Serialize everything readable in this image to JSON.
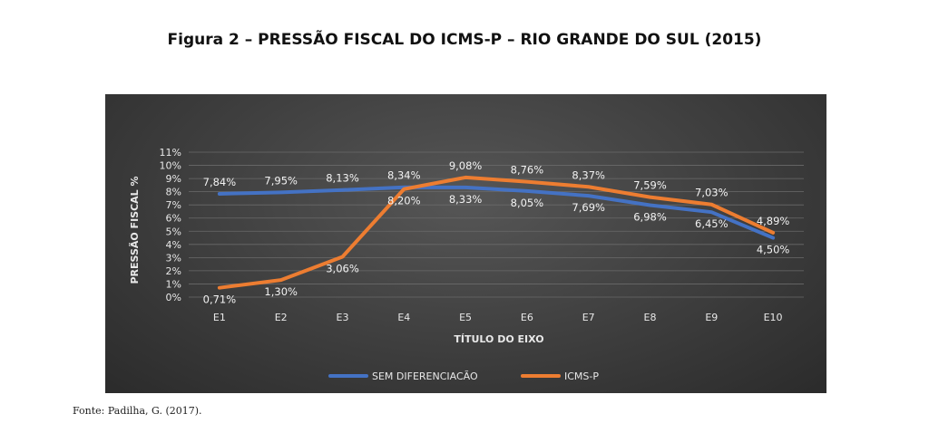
{
  "figure": {
    "title": "Figura 2 – PRESSÃO FISCAL DO ICMS-P – RIO GRANDE DO SUL (2015)",
    "source": "Fonte: Padilha, G. (2017)."
  },
  "chart_data": {
    "type": "line",
    "title": "",
    "xlabel": "TÍTULO DO EIXO",
    "ylabel": "PRESSÃO FISCAL %",
    "categories": [
      "E1",
      "E2",
      "E3",
      "E4",
      "E5",
      "E6",
      "E7",
      "E8",
      "E9",
      "E10"
    ],
    "y_ticks": [
      "0%",
      "1%",
      "2%",
      "3%",
      "4%",
      "5%",
      "6%",
      "7%",
      "8%",
      "9%",
      "10%",
      "11%"
    ],
    "ylim": [
      0,
      11
    ],
    "grid": true,
    "legend_position": "bottom",
    "series": [
      {
        "name": "SEM DIFERENCIACÃO",
        "color": "#4472c4",
        "values": [
          7.84,
          7.95,
          8.13,
          8.34,
          8.33,
          8.05,
          7.69,
          6.98,
          6.45,
          4.5
        ],
        "labels": [
          "7,84%",
          "7,95%",
          "8,13%",
          "8,34%",
          "8,33%",
          "8,05%",
          "7,69%",
          "6,98%",
          "6,45%",
          "4,50%"
        ]
      },
      {
        "name": "ICMS-P",
        "color": "#ed7d31",
        "values": [
          0.71,
          1.3,
          3.06,
          8.2,
          9.08,
          8.76,
          8.37,
          7.59,
          7.03,
          4.89
        ],
        "labels": [
          "0,71%",
          "1,30%",
          "3,06%",
          "8,20%",
          "9,08%",
          "8,76%",
          "8,37%",
          "7,59%",
          "7,03%",
          "4,89%"
        ]
      }
    ]
  }
}
